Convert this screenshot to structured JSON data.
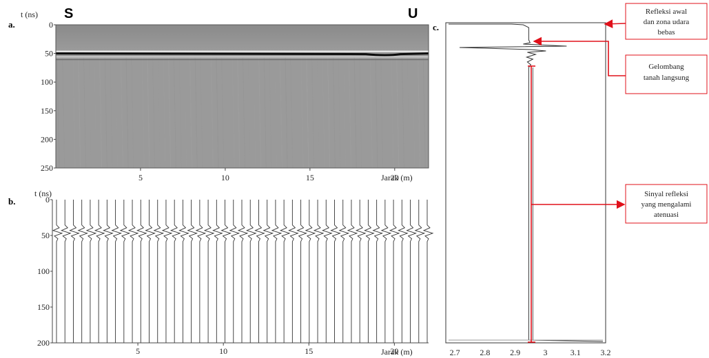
{
  "chart_data": [
    {
      "panel": "a.",
      "type": "heatmap",
      "ylabel": "t (ns)",
      "xlabel": "Jarak (m)",
      "xticks": [
        5,
        10,
        15,
        20
      ],
      "yticks": [
        0,
        50,
        100,
        150,
        200,
        250
      ],
      "xlim": [
        0,
        22
      ],
      "ylim": [
        0,
        250
      ],
      "left_marker": "S",
      "right_marker": "U",
      "reflector_t": 50
    },
    {
      "panel": "b.",
      "type": "line",
      "ylabel": "t (ns)",
      "xlabel": "Jarak (m)",
      "xticks": [
        5,
        10,
        15,
        20
      ],
      "yticks": [
        0,
        50,
        100,
        150,
        200
      ],
      "xlim": [
        0,
        22
      ],
      "ylim": [
        0,
        200
      ],
      "trace_count": 45,
      "wavelet_t": 45
    },
    {
      "panel": "c.",
      "type": "line",
      "xticks": [
        "2.7",
        "2.8",
        "2.9",
        "3",
        "3.1",
        "3.2"
      ],
      "xlim": [
        2.67,
        3.2
      ],
      "baseline": 2.945,
      "annotations": [
        {
          "lines": [
            "Refleksi awal",
            "dan zona udara",
            "bebas"
          ]
        },
        {
          "lines": [
            "Gelombang",
            "tanah langsung"
          ]
        },
        {
          "lines": [
            "Sinyal refleksi",
            "yang mengalami",
            "atenuasi"
          ]
        }
      ]
    }
  ],
  "colors": {
    "annotation": "#e0101a",
    "radargram_bg": "#9a9a9a"
  }
}
